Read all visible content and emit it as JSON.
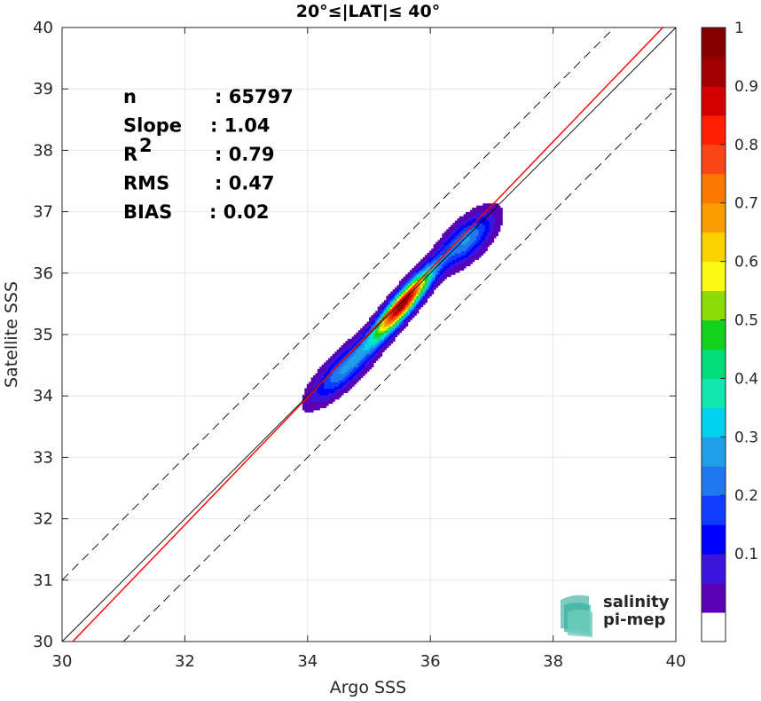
{
  "chart_data": {
    "type": "density contour",
    "title": "20°≤|LAT|≤ 40°",
    "xlabel": "Argo SSS",
    "ylabel": "Satellite SSS",
    "xlim": [
      30,
      40
    ],
    "ylim": [
      30,
      40
    ],
    "x_ticks": [
      "30",
      "32",
      "34",
      "36",
      "38",
      "40"
    ],
    "y_ticks": [
      "30",
      "31",
      "32",
      "33",
      "34",
      "35",
      "36",
      "37",
      "38",
      "39",
      "40"
    ],
    "grid": true,
    "stats": [
      {
        "label": "n",
        "value": ": 65797"
      },
      {
        "label": "Slope",
        "value": ": 1.04"
      },
      {
        "label": "R",
        "sup": "2",
        "value": ": 0.79"
      },
      {
        "label": "RMS",
        "value": ": 0.47"
      },
      {
        "label": "BIAS",
        "value": ": 0.02"
      }
    ],
    "lines": [
      {
        "kind": "identity",
        "color": "#000000",
        "points": [
          [
            30,
            30
          ],
          [
            40,
            40
          ]
        ]
      },
      {
        "kind": "regression",
        "color": "#ff0000",
        "slope": 1.04,
        "intercept": -1.38
      },
      {
        "kind": "upper-bound",
        "style": "dashed",
        "color": "#000000",
        "offset": 1.0
      },
      {
        "kind": "lower-bound",
        "style": "dashed",
        "color": "#000000",
        "offset": -1.0
      }
    ],
    "density_peaks": [
      {
        "x": 35.55,
        "y": 35.5,
        "level": 1.0
      },
      {
        "x": 36.6,
        "y": 36.55,
        "level": 0.3
      },
      {
        "x": 34.6,
        "y": 34.45,
        "level": 0.3
      }
    ],
    "colorbar": {
      "range": [
        0,
        1
      ],
      "ticks": [
        "0.1",
        "0.2",
        "0.3",
        "0.4",
        "0.5",
        "0.6",
        "0.7",
        "0.8",
        "0.9",
        "1"
      ],
      "colors": [
        "#ffffff",
        "#5a00b4",
        "#3c14dc",
        "#0000ff",
        "#0f3cff",
        "#2078f0",
        "#1fa0e8",
        "#00d2f0",
        "#10e8b0",
        "#00dc78",
        "#12d21e",
        "#8cdc0a",
        "#fafa12",
        "#fad200",
        "#fa9b00",
        "#fa7800",
        "#fa4616",
        "#ff1e00",
        "#d20000",
        "#a00000",
        "#820000"
      ]
    }
  },
  "logo": {
    "line1": "salinity",
    "line2": "pi-mep",
    "color": "#1a9e8f"
  }
}
